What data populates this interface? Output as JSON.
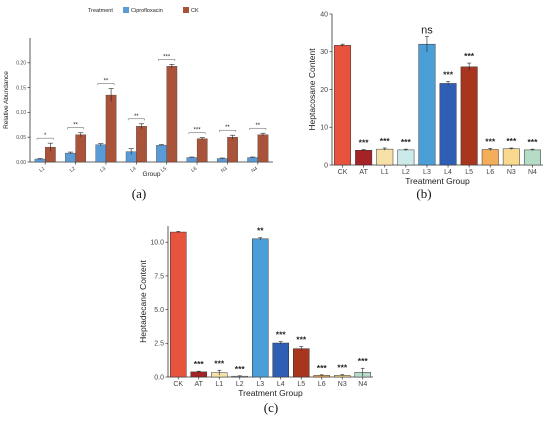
{
  "chart_data": [
    {
      "id": "a",
      "type": "bar",
      "caption": "(a)",
      "legend": {
        "title": "Treatment",
        "placement": "top",
        "entries": [
          {
            "name": "Ciprofloxacin",
            "color": "#5b9bd5"
          },
          {
            "name": "CK",
            "color": "#a9533a"
          }
        ]
      },
      "xlabel": "Group",
      "ylabel": "Relative Abundance",
      "ylim": [
        0,
        0.25
      ],
      "yticks": [
        "0.00",
        "0.05",
        "0.10",
        "0.15",
        "0.20"
      ],
      "ytick_values": [
        0,
        0.05,
        0.1,
        0.15,
        0.2
      ],
      "categories": [
        "L1",
        "L2",
        "L3",
        "L4",
        "L5",
        "L6",
        "N3",
        "N4"
      ],
      "series": [
        {
          "name": "Ciprofloxacin",
          "color": "#5b9bd5",
          "values": [
            0.006,
            0.018,
            0.035,
            0.021,
            0.034,
            0.009,
            0.007,
            0.009
          ],
          "errors": [
            0.001,
            0.002,
            0.002,
            0.006,
            0.001,
            0.001,
            0.001,
            0.001
          ]
        },
        {
          "name": "CK",
          "color": "#a9533a",
          "values": [
            0.03,
            0.055,
            0.135,
            0.072,
            0.193,
            0.047,
            0.05,
            0.055
          ],
          "errors": [
            0.008,
            0.004,
            0.013,
            0.005,
            0.004,
            0.002,
            0.004,
            0.003
          ]
        }
      ],
      "significance": [
        "*",
        "**",
        "**",
        "**",
        "***",
        "***",
        "**",
        "**"
      ]
    },
    {
      "id": "b",
      "type": "bar",
      "caption": "(b)",
      "xlabel": "Treatment Group",
      "ylabel": "Heptacosane Content",
      "ylim": [
        0,
        40
      ],
      "yticks": [
        "0",
        "10",
        "20",
        "30",
        "40"
      ],
      "ytick_values": [
        0,
        10,
        20,
        30,
        40
      ],
      "categories": [
        "CK",
        "AT",
        "L1",
        "L2",
        "L3",
        "L4",
        "L5",
        "L6",
        "N3",
        "N4"
      ],
      "values": [
        31.7,
        3.9,
        4.2,
        4.0,
        32.0,
        21.6,
        26.0,
        4.1,
        4.3,
        4.0
      ],
      "errors": [
        0.3,
        0.2,
        0.3,
        0.2,
        2.0,
        0.5,
        1.0,
        0.3,
        0.2,
        0.2
      ],
      "colors": [
        "#e8533d",
        "#a52327",
        "#f7e1a6",
        "#cdeaea",
        "#4b9fd8",
        "#2f5fb5",
        "#a8361e",
        "#f4ad58",
        "#f9d98e",
        "#b6dcc8"
      ],
      "significance": [
        "",
        "***",
        "***",
        "***",
        "ns",
        "***",
        "***",
        "***",
        "***",
        "***"
      ]
    },
    {
      "id": "c",
      "type": "bar",
      "caption": "(c)",
      "xlabel": "Treatment Group",
      "ylabel": "Heptadecane Content",
      "ylim": [
        0,
        11.2
      ],
      "yticks": [
        "0.0",
        "2.5",
        "5.0",
        "7.5",
        "10.0"
      ],
      "ytick_values": [
        0,
        2.5,
        5.0,
        7.5,
        10.0
      ],
      "categories": [
        "CK",
        "AT",
        "L1",
        "L2",
        "L3",
        "L4",
        "L5",
        "L6",
        "N3",
        "N4"
      ],
      "values": [
        10.75,
        0.38,
        0.32,
        0.06,
        10.25,
        2.52,
        2.1,
        0.12,
        0.12,
        0.35
      ],
      "errors": [
        0.05,
        0.05,
        0.18,
        0.03,
        0.08,
        0.1,
        0.15,
        0.04,
        0.05,
        0.3
      ],
      "colors": [
        "#e8533d",
        "#a52327",
        "#f7e1a6",
        "#cdeaea",
        "#4b9fd8",
        "#2f5fb5",
        "#a8361e",
        "#f4ad58",
        "#f9d98e",
        "#b6dcc8"
      ],
      "significance": [
        "",
        "***",
        "***",
        "***",
        "**",
        "***",
        "***",
        "***",
        "***",
        "***"
      ]
    }
  ]
}
